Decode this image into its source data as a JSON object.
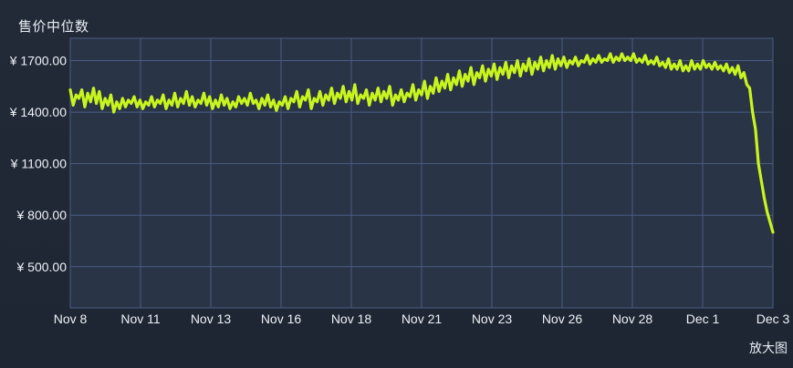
{
  "header": {
    "title": "售价中位数",
    "zoom_label": "放大图"
  },
  "colors": {
    "background": "#1e2533",
    "plot_background": "#2a3447",
    "grid": "#4a5d82",
    "line": "#c8f51e"
  },
  "chart_data": {
    "type": "line",
    "title": "售价中位数",
    "xlabel": "",
    "ylabel": "",
    "y_tick_labels": [
      "¥ 1700.00",
      "¥ 1400.00",
      "¥ 1100.00",
      "¥ 800.00",
      "¥ 500.00"
    ],
    "y_ticks": [
      1700,
      1400,
      1100,
      800,
      500
    ],
    "x_tick_labels": [
      "Nov 8",
      "Nov 11",
      "Nov 13",
      "Nov 16",
      "Nov 18",
      "Nov 21",
      "Nov 23",
      "Nov 26",
      "Nov 28",
      "Dec 1",
      "Dec 3"
    ],
    "ylim": [
      260,
      1830
    ],
    "grid": true,
    "series": [
      {
        "values": [
          1530,
          1440,
          1500,
          1480,
          1530,
          1430,
          1510,
          1460,
          1540,
          1450,
          1520,
          1420,
          1480,
          1440,
          1500,
          1400,
          1460,
          1420,
          1480,
          1430,
          1470,
          1450,
          1490,
          1430,
          1470,
          1420,
          1460,
          1440,
          1490,
          1430,
          1470,
          1450,
          1500,
          1420,
          1470,
          1440,
          1510,
          1430,
          1480,
          1450,
          1520,
          1440,
          1490,
          1430,
          1470,
          1450,
          1510,
          1440,
          1490,
          1420,
          1470,
          1430,
          1500,
          1440,
          1480,
          1420,
          1460,
          1430,
          1490,
          1450,
          1480,
          1440,
          1510,
          1450,
          1470,
          1420,
          1480,
          1440,
          1500,
          1430,
          1470,
          1410,
          1460,
          1440,
          1490,
          1420,
          1480,
          1460,
          1520,
          1430,
          1490,
          1470,
          1530,
          1420,
          1480,
          1460,
          1520,
          1440,
          1500,
          1470,
          1540,
          1450,
          1510,
          1480,
          1550,
          1460,
          1520,
          1470,
          1560,
          1450,
          1500,
          1480,
          1530,
          1440,
          1510,
          1470,
          1540,
          1460,
          1520,
          1480,
          1550,
          1440,
          1500,
          1470,
          1530,
          1460,
          1510,
          1490,
          1560,
          1470,
          1530,
          1500,
          1580,
          1480,
          1550,
          1510,
          1600,
          1520,
          1580,
          1540,
          1620,
          1530,
          1600,
          1560,
          1640,
          1550,
          1620,
          1580,
          1660,
          1560,
          1630,
          1600,
          1670,
          1580,
          1650,
          1610,
          1680,
          1590,
          1660,
          1620,
          1690,
          1600,
          1670,
          1630,
          1700,
          1610,
          1680,
          1640,
          1710,
          1620,
          1690,
          1650,
          1720,
          1640,
          1700,
          1660,
          1730,
          1650,
          1710,
          1670,
          1720,
          1660,
          1700,
          1680,
          1720,
          1670,
          1700,
          1690,
          1730,
          1680,
          1710,
          1690,
          1730,
          1690,
          1710,
          1700,
          1740,
          1690,
          1720,
          1700,
          1740,
          1700,
          1720,
          1700,
          1740,
          1690,
          1710,
          1690,
          1730,
          1680,
          1700,
          1680,
          1720,
          1670,
          1690,
          1660,
          1710,
          1650,
          1680,
          1650,
          1700,
          1640,
          1670,
          1640,
          1700,
          1650,
          1680,
          1650,
          1700,
          1660,
          1680,
          1650,
          1690,
          1650,
          1670,
          1640,
          1680,
          1630,
          1660,
          1620,
          1670,
          1600,
          1630,
          1560,
          1540,
          1400,
          1300,
          1100,
          1000,
          900,
          820,
          760,
          700
        ]
      }
    ]
  }
}
